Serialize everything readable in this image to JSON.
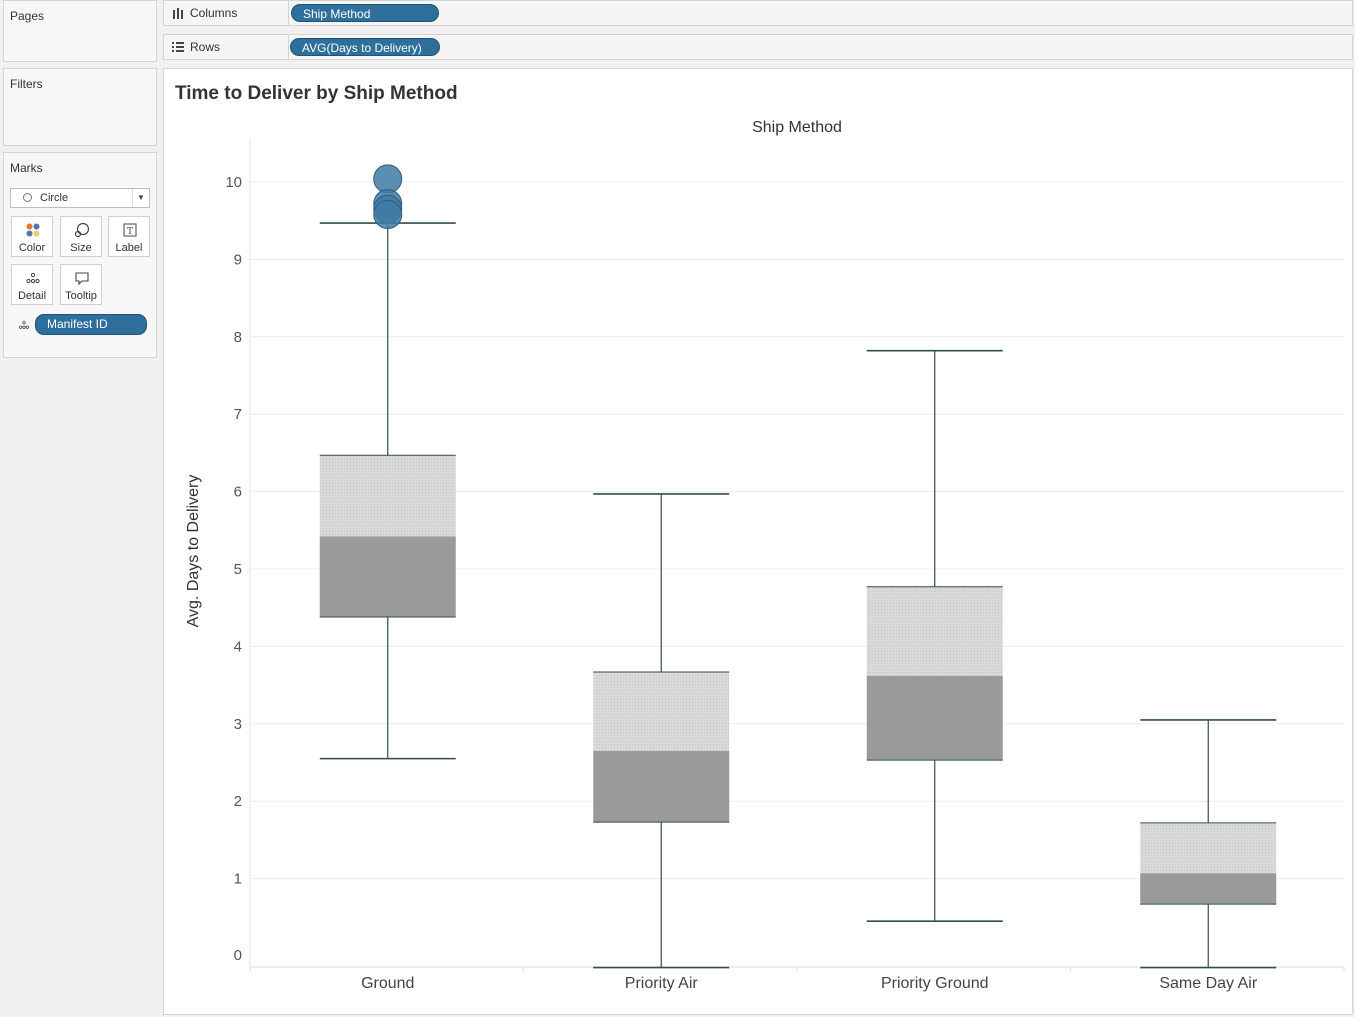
{
  "pages_label": "Pages",
  "filters_label": "Filters",
  "marks": {
    "label": "Marks",
    "mark_type": "Circle",
    "buttons": [
      "Color",
      "Size",
      "Label",
      "Detail",
      "Tooltip"
    ],
    "detail_pill": "Manifest ID"
  },
  "shelves": {
    "columns_label": "Columns",
    "columns_pill": "Ship Method",
    "rows_label": "Rows",
    "rows_pill": "AVG(Days to Delivery)"
  },
  "colors": {
    "pill": "#2f6f9b",
    "box_upper": "#d9d9d9",
    "box_lower": "#9a9a9a",
    "whisker": "#2f4f4f",
    "outlier": "#3f7aa5"
  },
  "chart_data": {
    "type": "boxplot",
    "title": "Time to Deliver by Ship Method",
    "column_header": "Ship Method",
    "ylabel": "Avg. Days to Delivery",
    "ylim": [
      0,
      10.5
    ],
    "yticks": [
      0,
      1,
      2,
      3,
      4,
      5,
      6,
      7,
      8,
      9,
      10
    ],
    "grid": true,
    "categories": [
      "Ground",
      "Priority Air",
      "Priority Ground",
      "Same Day Air"
    ],
    "boxes": [
      {
        "category": "Ground",
        "whisker_low": 2.55,
        "q1": 4.38,
        "median": 5.42,
        "q3": 6.47,
        "whisker_high": 9.47,
        "outliers": [
          10.04,
          9.72,
          9.65,
          9.58
        ]
      },
      {
        "category": "Priority Air",
        "whisker_low": -0.15,
        "q1": 1.73,
        "median": 2.65,
        "q3": 3.67,
        "whisker_high": 5.97,
        "outliers": []
      },
      {
        "category": "Priority Ground",
        "whisker_low": 0.45,
        "q1": 2.53,
        "median": 3.62,
        "q3": 4.77,
        "whisker_high": 7.82,
        "outliers": []
      },
      {
        "category": "Same Day Air",
        "whisker_low": -0.15,
        "q1": 0.67,
        "median": 1.07,
        "q3": 1.72,
        "whisker_high": 3.05,
        "outliers": []
      }
    ]
  }
}
